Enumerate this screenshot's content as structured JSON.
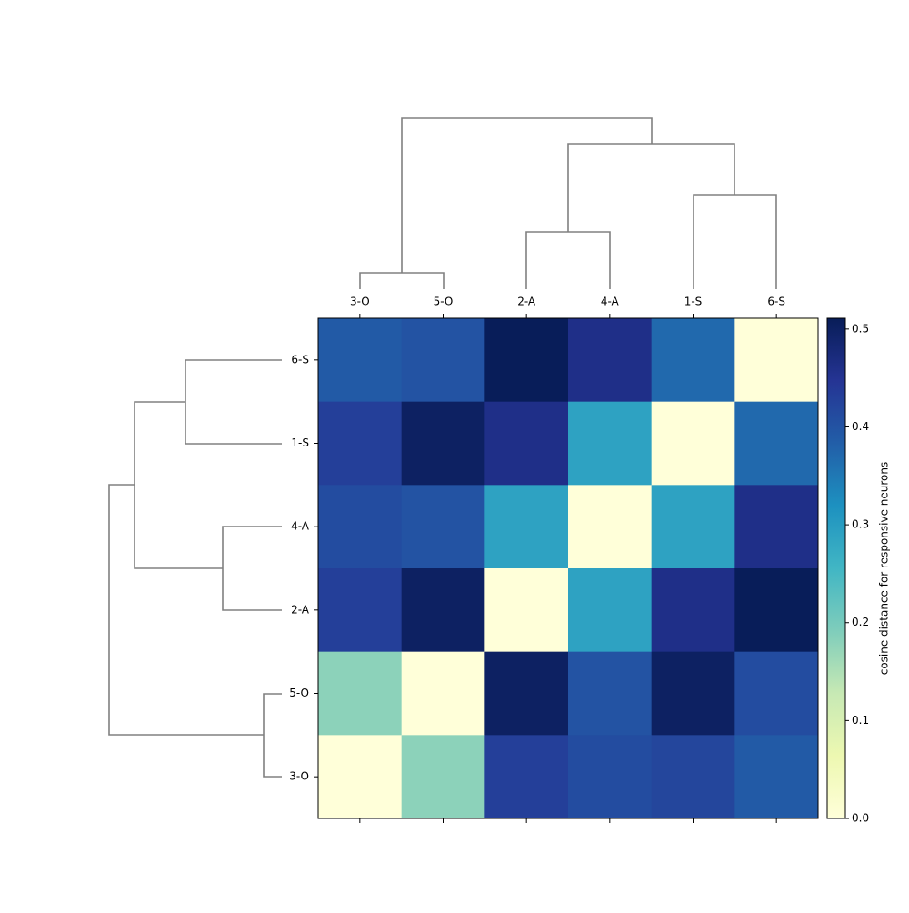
{
  "chart_data": {
    "type": "heatmap",
    "row_labels": [
      "6-S",
      "1-S",
      "4-A",
      "2-A",
      "5-O",
      "3-O"
    ],
    "col_labels": [
      "3-O",
      "5-O",
      "2-A",
      "4-A",
      "1-S",
      "6-S"
    ],
    "values": [
      [
        0.39,
        0.4,
        0.51,
        0.46,
        0.37,
        0
      ],
      [
        0.43,
        0.5,
        0.46,
        0.29,
        0,
        0.37
      ],
      [
        0.41,
        0.4,
        0.29,
        0,
        0.29,
        0.46
      ],
      [
        0.43,
        0.5,
        0,
        0.29,
        0.46,
        0.51
      ],
      [
        0.18,
        0,
        0.5,
        0.4,
        0.5,
        0.41
      ],
      [
        0,
        0.18,
        0.43,
        0.41,
        0.42,
        0.39
      ]
    ],
    "colormap": "YlGnBu",
    "colorbar_label": "cosine distance for responsive neurons",
    "zlim": [
      0,
      0.511
    ],
    "zticks": [
      {
        "value": 0,
        "label": "0.0"
      },
      0.1,
      0.2,
      0.3,
      0.4,
      0.5
    ]
  }
}
